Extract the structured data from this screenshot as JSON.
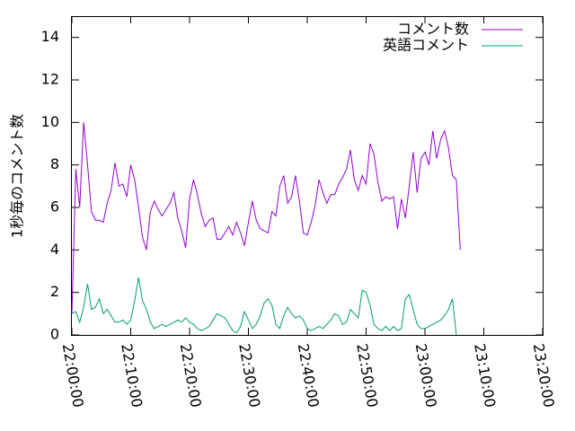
{
  "chart_data": {
    "type": "line",
    "title": "",
    "xlabel": "",
    "ylabel": "1秒毎のコメント数",
    "x_unit": "time (HH:MM:SS)",
    "xlim": [
      "22:00:00",
      "23:20:00"
    ],
    "ylim": [
      0,
      15
    ],
    "xticks": [
      "22:00:00",
      "22:10:00",
      "22:20:00",
      "22:30:00",
      "22:40:00",
      "22:50:00",
      "23:00:00",
      "23:10:00",
      "23:20:00"
    ],
    "yticks": [
      "0",
      "2",
      "4",
      "6",
      "8",
      "10",
      "12",
      "14"
    ],
    "grid": false,
    "legend_position": "top-right",
    "sample_interval_seconds": 40,
    "x_start": "22:00:00",
    "series": [
      {
        "name": "コメント数",
        "color": "#9400d3",
        "values": [
          1.0,
          7.8,
          6.0,
          10.0,
          8.0,
          5.8,
          5.4,
          5.4,
          5.3,
          6.2,
          6.8,
          8.1,
          7.0,
          7.1,
          6.5,
          8.0,
          7.3,
          6.0,
          4.6,
          4.0,
          5.8,
          6.3,
          5.9,
          5.6,
          5.9,
          6.2,
          6.7,
          5.5,
          4.9,
          4.1,
          6.4,
          7.3,
          6.6,
          5.7,
          5.1,
          5.4,
          5.5,
          4.5,
          4.5,
          4.8,
          5.1,
          4.7,
          5.3,
          4.8,
          4.2,
          5.3,
          6.3,
          5.4,
          5.0,
          4.9,
          4.8,
          5.8,
          5.6,
          7.0,
          7.5,
          6.2,
          6.5,
          7.5,
          6.3,
          4.8,
          4.7,
          5.3,
          6.1,
          7.3,
          6.7,
          6.2,
          6.6,
          6.6,
          7.1,
          7.4,
          7.8,
          8.7,
          7.3,
          6.8,
          7.5,
          7.1,
          9.0,
          8.5,
          7.2,
          6.3,
          6.5,
          6.4,
          6.5,
          5.0,
          6.4,
          5.5,
          7.0,
          8.6,
          6.7,
          8.3,
          8.6,
          8.0,
          9.6,
          8.3,
          9.2,
          9.6,
          8.8,
          7.5,
          7.3,
          4.0
        ]
      },
      {
        "name": "英語コメント",
        "color": "#009e73",
        "values": [
          1.0,
          1.1,
          0.6,
          1.3,
          2.4,
          1.2,
          1.3,
          1.7,
          1.0,
          1.2,
          0.9,
          0.6,
          0.6,
          0.7,
          0.5,
          0.7,
          1.6,
          2.7,
          1.6,
          1.2,
          0.6,
          0.3,
          0.4,
          0.5,
          0.4,
          0.5,
          0.6,
          0.7,
          0.6,
          0.8,
          0.6,
          0.5,
          0.3,
          0.2,
          0.3,
          0.4,
          0.7,
          1.0,
          0.9,
          0.8,
          0.5,
          0.2,
          0.1,
          0.4,
          1.1,
          0.7,
          0.3,
          0.5,
          0.9,
          1.5,
          1.7,
          1.4,
          0.5,
          0.3,
          0.9,
          1.3,
          1.0,
          0.8,
          0.9,
          0.7,
          0.3,
          0.2,
          0.3,
          0.4,
          0.3,
          0.5,
          0.7,
          1.0,
          0.9,
          0.5,
          0.6,
          1.2,
          1.0,
          0.8,
          2.1,
          2.0,
          1.4,
          0.5,
          0.3,
          0.2,
          0.4,
          0.2,
          0.4,
          0.2,
          0.3,
          1.7,
          1.9,
          1.2,
          0.5,
          0.3,
          0.3,
          0.4,
          0.5,
          0.6,
          0.7,
          0.9,
          1.2,
          1.7,
          0.0
        ]
      }
    ]
  }
}
